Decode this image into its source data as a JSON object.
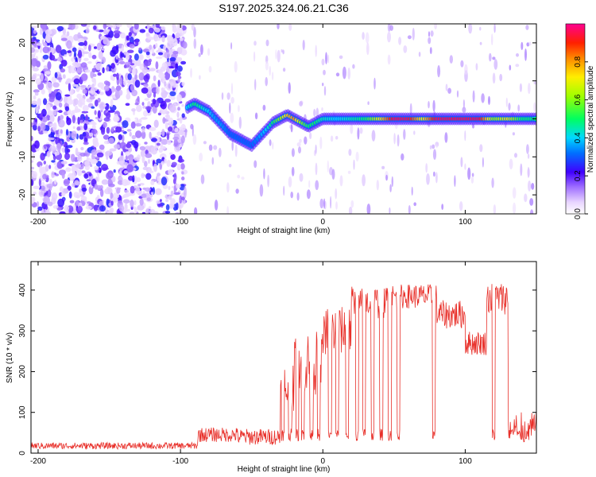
{
  "figure": {
    "title": "S197.2025.324.06.21.C36",
    "colors": {
      "snr_line": "#e8302a",
      "axis": "#000000",
      "background": "#ffffff"
    }
  },
  "chart_data": [
    {
      "type": "heatmap",
      "name": "spectrogram",
      "xlabel": "Height of straight line (km)",
      "ylabel": "Frequency (Hz)",
      "xlim": [
        -205,
        150
      ],
      "ylim": [
        -25,
        25
      ],
      "x_ticks": [
        -200,
        -100,
        0,
        100
      ],
      "y_ticks": [
        -20,
        -10,
        0,
        10,
        20
      ],
      "colorbar": {
        "label": "Normalized spectral amplitude",
        "range": [
          0,
          1
        ],
        "ticks": [
          "0.0",
          "0.2",
          "0.4",
          "0.6",
          "0.8"
        ],
        "tick_values": [
          0.0,
          0.2,
          0.4,
          0.6,
          0.8
        ]
      },
      "noise_region_km": [
        -205,
        -97
      ],
      "signal_track": {
        "x": [
          -95,
          -90,
          -85,
          -80,
          -75,
          -70,
          -65,
          -60,
          -55,
          -50,
          -45,
          -40,
          -35,
          -30,
          -25,
          -20,
          -15,
          -10,
          -5,
          0,
          10,
          20,
          30,
          40,
          50,
          60,
          70,
          80,
          90,
          100,
          110,
          120,
          130,
          140,
          150
        ],
        "freq": [
          3,
          4,
          3,
          2,
          0,
          -2,
          -4,
          -5,
          -6,
          -7,
          -5,
          -3,
          -1,
          0,
          1,
          0,
          -1,
          -2,
          -1,
          0,
          0,
          0,
          0,
          0,
          0,
          0,
          0,
          0,
          0,
          0,
          0,
          0,
          0,
          0,
          0
        ],
        "amplitude": [
          0.4,
          0.5,
          0.45,
          0.4,
          0.35,
          0.35,
          0.3,
          0.3,
          0.3,
          0.3,
          0.35,
          0.4,
          0.5,
          0.6,
          0.75,
          0.8,
          0.6,
          0.5,
          0.5,
          0.45,
          0.4,
          0.45,
          0.5,
          0.7,
          0.95,
          0.95,
          0.7,
          0.95,
          0.95,
          0.95,
          0.95,
          0.6,
          0.7,
          0.5,
          0.5
        ]
      }
    },
    {
      "type": "line",
      "name": "snr",
      "xlabel": "Height of straight line (km)",
      "ylabel": "SNR (10 * v/v)",
      "xlim": [
        -205,
        150
      ],
      "ylim": [
        0,
        470
      ],
      "x_ticks": [
        -200,
        -100,
        0,
        100
      ],
      "y_ticks": [
        0,
        100,
        200,
        300,
        400
      ],
      "series": [
        {
          "name": "SNR",
          "segments": [
            {
              "x": [
                -205,
                -88
              ],
              "level": 18,
              "noise": 8
            },
            {
              "x": [
                -88,
                -60
              ],
              "level": 45,
              "noise": 18
            },
            {
              "x": [
                -60,
                -30
              ],
              "level": 40,
              "noise": 20
            },
            {
              "x": [
                -30,
                -20
              ],
              "level": 160,
              "noise": 60
            },
            {
              "x": [
                -20,
                0
              ],
              "level": 220,
              "noise": 80
            },
            {
              "x": [
                0,
                20
              ],
              "level": 300,
              "noise": 60
            },
            {
              "x": [
                20,
                45
              ],
              "level": 370,
              "noise": 40
            },
            {
              "x": [
                45,
                80
              ],
              "level": 385,
              "noise": 30
            },
            {
              "x": [
                80,
                100
              ],
              "level": 340,
              "noise": 35
            },
            {
              "x": [
                100,
                115
              ],
              "level": 270,
              "noise": 30
            },
            {
              "x": [
                115,
                130
              ],
              "level": 380,
              "noise": 40
            },
            {
              "x": [
                130,
                150
              ],
              "level": 60,
              "noise": 40
            }
          ],
          "dropouts": {
            "x": [
              -28,
              -23,
              -18,
              -14,
              -8,
              -3,
              5,
              10,
              17,
              24,
              29,
              35,
              41,
              47,
              53,
              78,
              120,
              133,
              138,
              143
            ],
            "level": 45
          }
        }
      ]
    }
  ]
}
